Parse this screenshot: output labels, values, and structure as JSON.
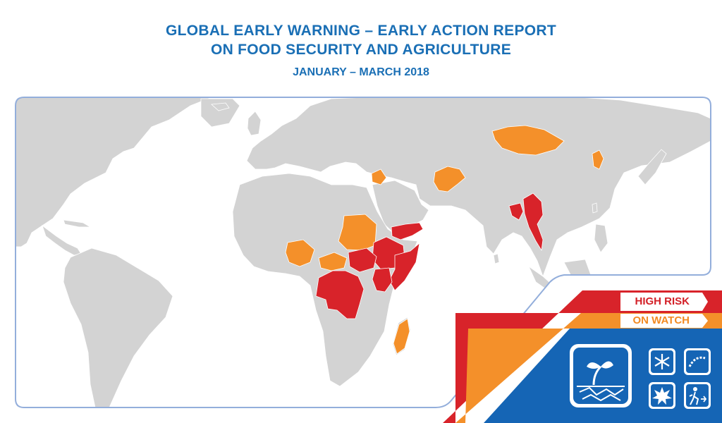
{
  "header": {
    "title_line1": "GLOBAL EARLY WARNING – EARLY ACTION REPORT",
    "title_line2": "ON FOOD SECURITY AND AGRICULTURE",
    "period": "JANUARY – MARCH 2018"
  },
  "legend": {
    "high_risk": "HIGH RISK",
    "on_watch": "ON WATCH"
  },
  "colors": {
    "high_risk": "#d8232a",
    "on_watch": "#f4902a",
    "land": "#d3d3d3",
    "ocean": "#ffffff",
    "frame": "#93aedb",
    "brand_blue": "#1565b5"
  },
  "icons": [
    "seedling-drought-icon",
    "snowflake-icon",
    "locust-icon",
    "conflict-burst-icon",
    "displaced-person-icon"
  ]
}
